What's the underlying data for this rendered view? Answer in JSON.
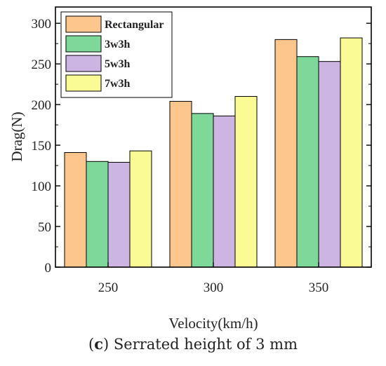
{
  "chart_data": {
    "type": "bar",
    "categories": [
      "250",
      "300",
      "350"
    ],
    "series": [
      {
        "name": "Rectangular",
        "values": [
          141,
          204,
          280
        ],
        "color": "#FDC68C"
      },
      {
        "name": "3w3h",
        "values": [
          130,
          189,
          259
        ],
        "color": "#7ED899"
      },
      {
        "name": "5w3h",
        "values": [
          129,
          186,
          253
        ],
        "color": "#CDB5E3"
      },
      {
        "name": "7w3h",
        "values": [
          143,
          210,
          282
        ],
        "color": "#FBFB95"
      }
    ],
    "xlabel": "Velocity(km/h)",
    "ylabel": "Drag(N)",
    "ylim": [
      0,
      320
    ],
    "yticks": [
      0,
      50,
      100,
      150,
      200,
      250,
      300
    ],
    "grid": false,
    "legend": "top-left"
  },
  "caption": {
    "letter": "c",
    "open": "(",
    "close": ")",
    "text": " Serrated height of 3 mm"
  }
}
